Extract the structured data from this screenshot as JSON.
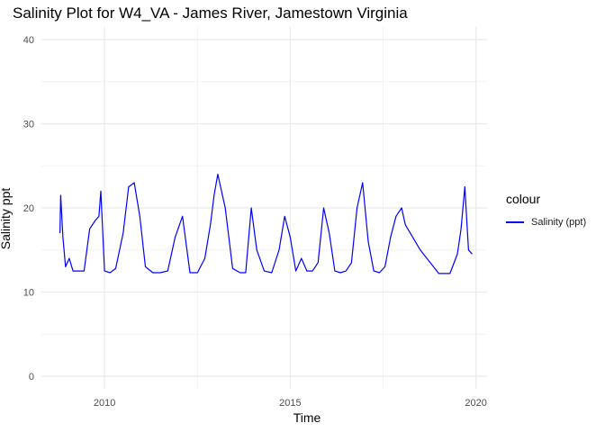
{
  "chart_data": {
    "type": "line",
    "title": "Salinity Plot for W4_VA - James River, Jamestown Virginia",
    "xlabel": "Time",
    "ylabel": "Salinity ppt",
    "xlim": [
      2008.3,
      2020.3
    ],
    "ylim": [
      -1.5,
      41.5
    ],
    "x_ticks": [
      2010,
      2015,
      2020
    ],
    "x_tick_labels": [
      "2010",
      "2015",
      "2020"
    ],
    "y_ticks": [
      0,
      10,
      20,
      30,
      40
    ],
    "y_tick_labels": [
      "0",
      "10",
      "20",
      "30",
      "40"
    ],
    "grid": true,
    "legend": {
      "title": "colour",
      "placement": "right"
    },
    "series": [
      {
        "name": "Salinity (ppt)",
        "color": "#0000ff",
        "x": [
          2008.8,
          2008.82,
          2008.88,
          2008.95,
          2009.05,
          2009.15,
          2009.3,
          2009.45,
          2009.6,
          2009.75,
          2009.85,
          2009.9,
          2010.0,
          2010.15,
          2010.3,
          2010.5,
          2010.65,
          2010.8,
          2010.95,
          2011.1,
          2011.3,
          2011.5,
          2011.7,
          2011.9,
          2012.1,
          2012.3,
          2012.5,
          2012.7,
          2012.85,
          2012.95,
          2013.05,
          2013.25,
          2013.45,
          2013.65,
          2013.8,
          2013.95,
          2014.1,
          2014.3,
          2014.5,
          2014.7,
          2014.85,
          2015.0,
          2015.15,
          2015.3,
          2015.45,
          2015.6,
          2015.75,
          2015.9,
          2016.05,
          2016.2,
          2016.35,
          2016.5,
          2016.65,
          2016.8,
          2016.95,
          2017.1,
          2017.25,
          2017.4,
          2017.55,
          2017.7,
          2017.85,
          2018.0,
          2018.1,
          2018.5,
          2019.0,
          2019.3,
          2019.5,
          2019.6,
          2019.7,
          2019.8,
          2019.9
        ],
        "values": [
          17,
          21.5,
          16.5,
          13,
          14,
          12.5,
          12.5,
          12.5,
          17.5,
          18.5,
          19,
          22,
          12.5,
          12.3,
          12.8,
          17,
          22.5,
          23,
          19,
          13,
          12.3,
          12.3,
          12.5,
          16.5,
          19,
          12.3,
          12.3,
          14,
          18,
          21.5,
          24,
          20,
          12.8,
          12.3,
          12.3,
          20,
          15,
          12.5,
          12.3,
          15,
          19,
          16.5,
          12.5,
          14,
          12.5,
          12.5,
          13.5,
          20,
          17,
          12.5,
          12.3,
          12.5,
          13.5,
          20,
          23,
          16,
          12.5,
          12.3,
          13,
          16.5,
          19,
          20,
          18,
          15,
          12.2,
          12.2,
          14.5,
          17.5,
          22.5,
          15,
          14.5
        ]
      }
    ]
  }
}
